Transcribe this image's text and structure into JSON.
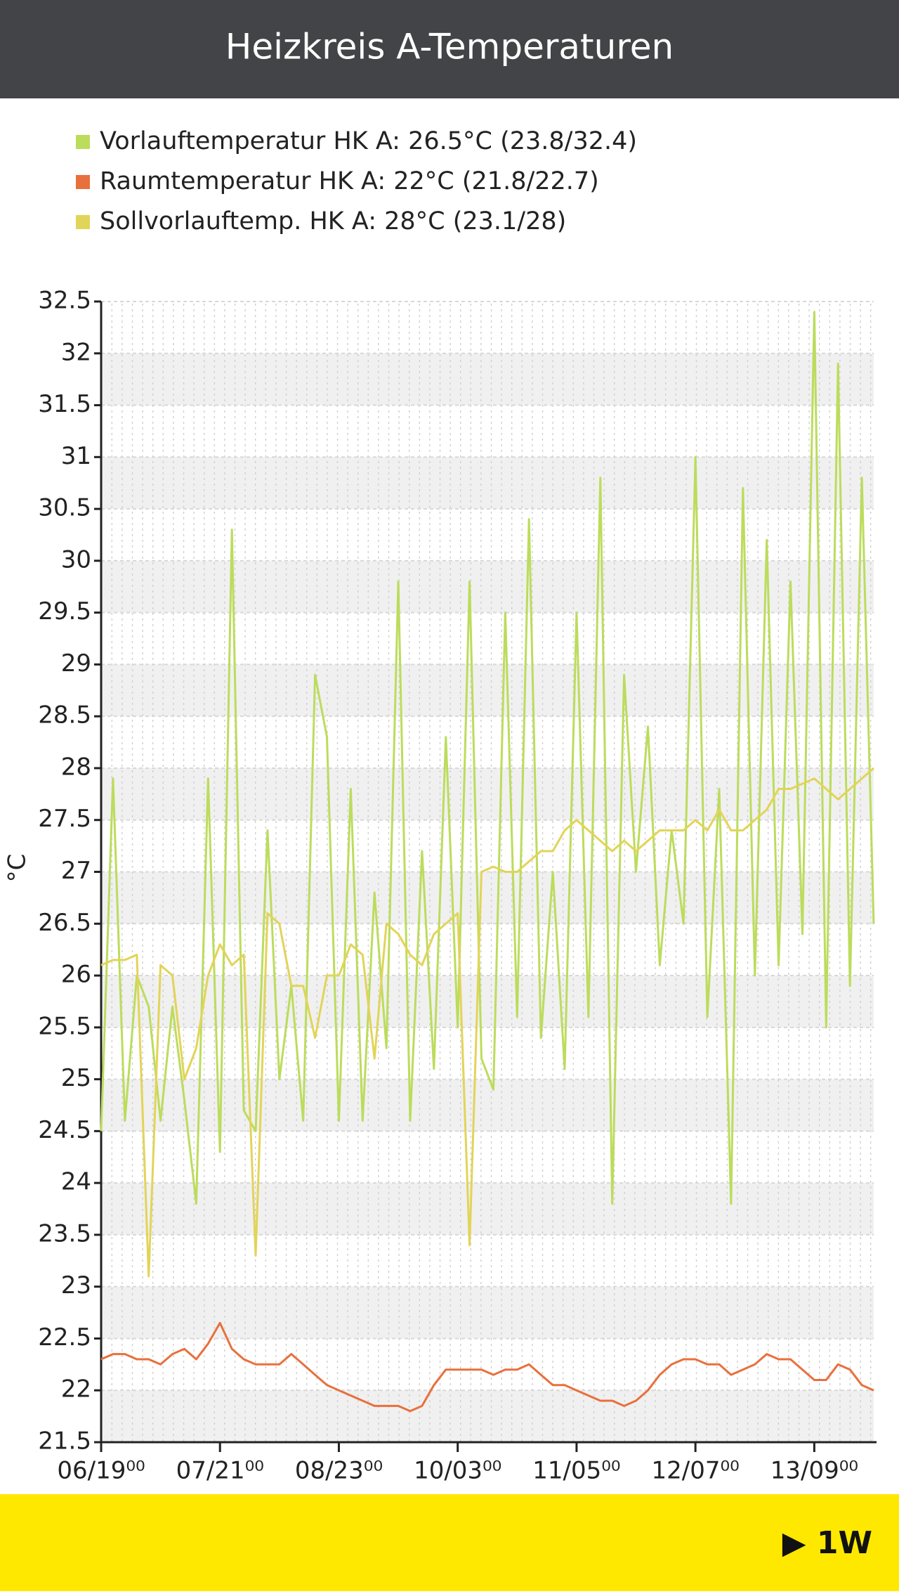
{
  "header": {
    "title": "Heizkreis A-Temperaturen"
  },
  "chart_data": {
    "type": "line",
    "y_label": "°C",
    "series": [
      {
        "name": "Vorlauftemperatur HK A: 26.5°C (23.8/32.4)",
        "color": "#bcdc5c",
        "values": [
          24.5,
          27.9,
          24.6,
          26.0,
          25.7,
          24.6,
          25.7,
          24.8,
          23.8,
          27.9,
          24.3,
          30.3,
          24.7,
          24.5,
          27.4,
          25.0,
          25.9,
          24.6,
          28.9,
          28.3,
          24.6,
          27.8,
          24.6,
          26.8,
          25.3,
          29.8,
          24.6,
          27.2,
          25.1,
          28.3,
          25.5,
          29.8,
          25.2,
          24.9,
          29.5,
          25.6,
          30.4,
          25.4,
          27.0,
          25.1,
          29.5,
          25.6,
          30.8,
          23.8,
          28.9,
          27.0,
          28.4,
          26.1,
          27.4,
          26.5,
          31.0,
          25.6,
          27.8,
          23.8,
          30.7,
          26.0,
          30.2,
          26.1,
          29.8,
          26.4,
          32.4,
          25.5,
          31.9,
          25.9,
          30.8,
          26.5
        ]
      },
      {
        "name": "Raumtemperatur HK A: 22°C (21.8/22.7)",
        "color": "#e8703c",
        "values": [
          22.3,
          22.35,
          22.35,
          22.3,
          22.3,
          22.25,
          22.35,
          22.4,
          22.3,
          22.45,
          22.65,
          22.4,
          22.3,
          22.25,
          22.25,
          22.25,
          22.35,
          22.25,
          22.15,
          22.05,
          22.0,
          21.95,
          21.9,
          21.85,
          21.85,
          21.85,
          21.8,
          21.85,
          22.05,
          22.2,
          22.2,
          22.2,
          22.2,
          22.15,
          22.2,
          22.2,
          22.25,
          22.15,
          22.05,
          22.05,
          22.0,
          21.95,
          21.9,
          21.9,
          21.85,
          21.9,
          22.0,
          22.15,
          22.25,
          22.3,
          22.3,
          22.25,
          22.25,
          22.15,
          22.2,
          22.25,
          22.35,
          22.3,
          22.3,
          22.2,
          22.1,
          22.1,
          22.25,
          22.2,
          22.05,
          22.0
        ]
      },
      {
        "name": "Sollvorlauftemp. HK A: 28°C (23.1/28)",
        "color": "#e2d458",
        "values": [
          26.1,
          26.15,
          26.15,
          26.2,
          23.1,
          26.1,
          26.0,
          25.0,
          25.3,
          26.0,
          26.3,
          26.1,
          26.2,
          23.3,
          26.6,
          26.5,
          25.9,
          25.9,
          25.4,
          26.0,
          26.0,
          26.3,
          26.2,
          25.2,
          26.5,
          26.4,
          26.2,
          26.1,
          26.4,
          26.5,
          26.6,
          23.4,
          27.0,
          27.05,
          27.0,
          27.0,
          27.1,
          27.2,
          27.2,
          27.4,
          27.5,
          27.4,
          27.3,
          27.2,
          27.3,
          27.2,
          27.3,
          27.4,
          27.4,
          27.4,
          27.5,
          27.4,
          27.6,
          27.4,
          27.4,
          27.5,
          27.6,
          27.8,
          27.8,
          27.85,
          27.9,
          27.8,
          27.7,
          27.8,
          27.9,
          28.0
        ]
      }
    ],
    "xlim": [
      0,
      65
    ],
    "xticks": [
      {
        "value": 0,
        "label": "06/19⁰⁰"
      },
      {
        "value": 10,
        "label": "07/21⁰⁰"
      },
      {
        "value": 20,
        "label": "08/23⁰⁰"
      },
      {
        "value": 30,
        "label": "10/03⁰⁰"
      },
      {
        "value": 40,
        "label": "11/05⁰⁰"
      },
      {
        "value": 50,
        "label": "12/07⁰⁰"
      },
      {
        "value": 60,
        "label": "13/09⁰⁰"
      }
    ],
    "ylim": [
      21.5,
      32.5
    ],
    "yticks": [
      21.5,
      22,
      22.5,
      23,
      23.5,
      24,
      24.5,
      25,
      25.5,
      26,
      26.5,
      27,
      27.5,
      28,
      28.5,
      29,
      29.5,
      30,
      30.5,
      31,
      31.5,
      32,
      32.5
    ],
    "grid": true
  },
  "footer": {
    "button": "▶ 1W"
  }
}
